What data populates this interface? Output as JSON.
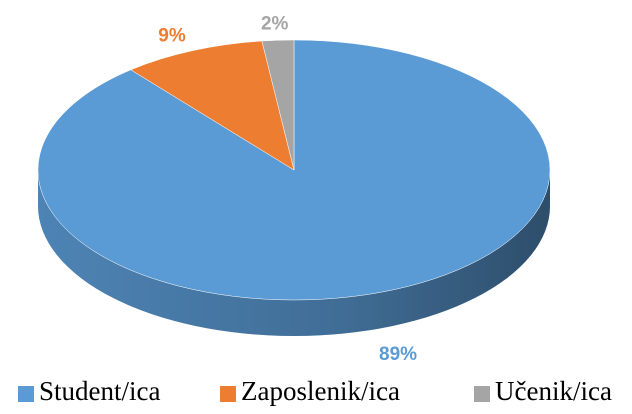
{
  "chart_data": {
    "type": "pie",
    "categories": [
      "Student/ica",
      "Zaposlenik/ica",
      "Učenik/ica"
    ],
    "values": [
      89,
      9,
      2
    ],
    "value_labels": [
      "89%",
      "9%",
      "2%"
    ],
    "colors": [
      "#5b9bd5",
      "#ed7d31",
      "#a5a5a5"
    ],
    "legend": "bottom"
  }
}
